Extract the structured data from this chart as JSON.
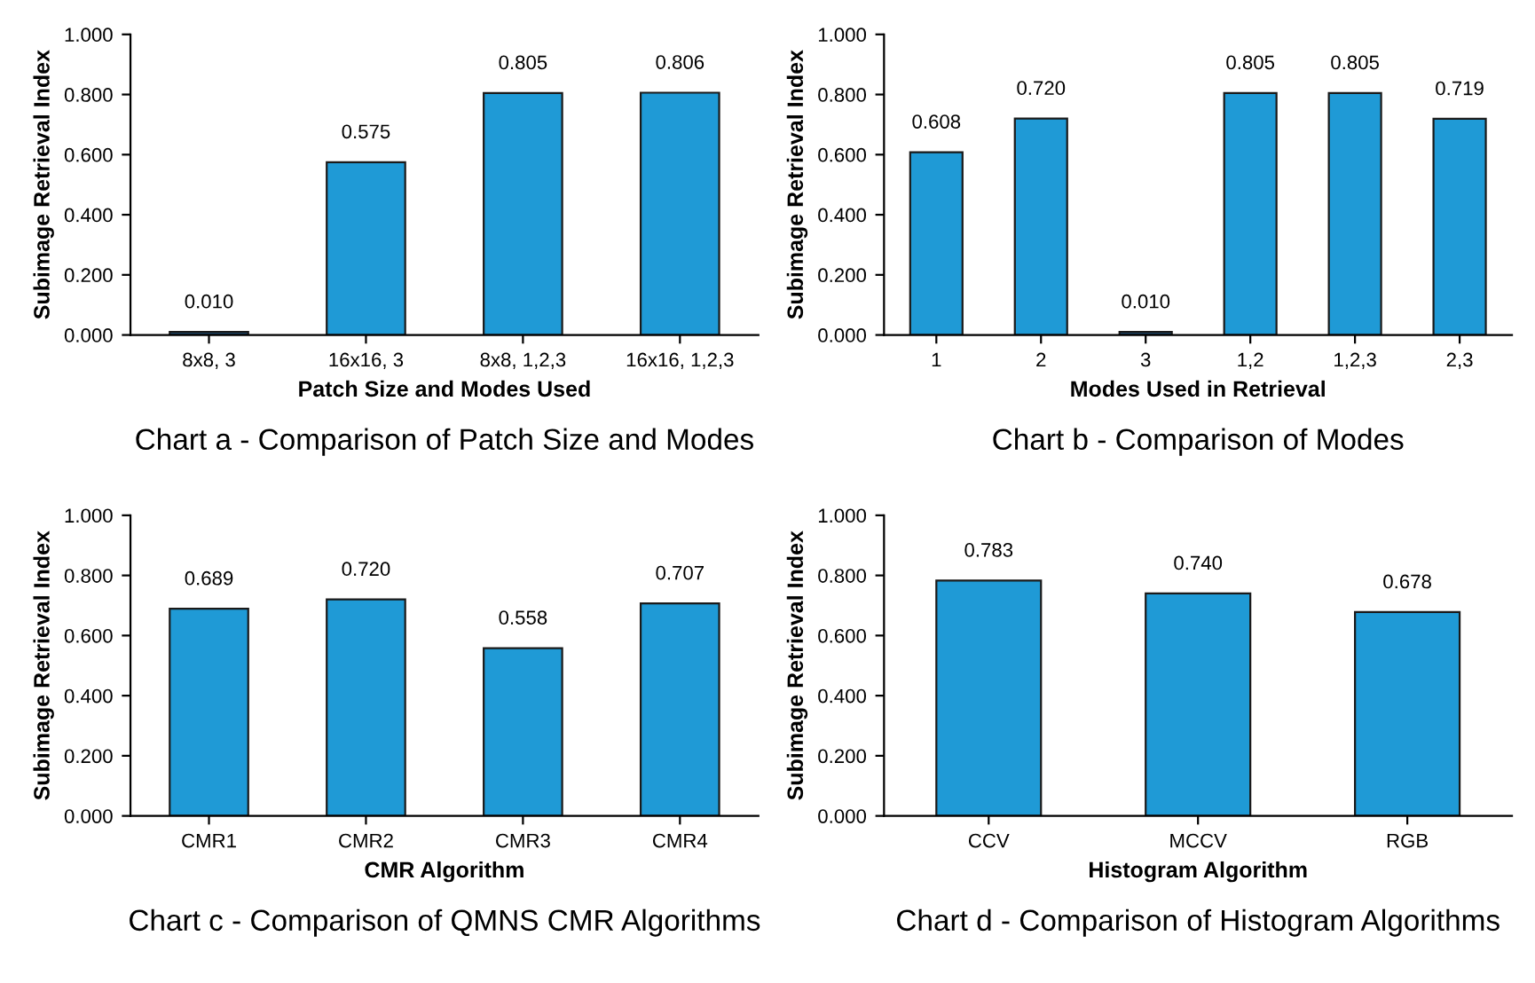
{
  "chart_data": [
    {
      "type": "bar",
      "title": "Chart a - Comparison of Patch Size and Modes",
      "xlabel": "Patch Size and Modes Used",
      "ylabel": "Subimage Retrieval Index",
      "categories": [
        "8x8, 3",
        "16x16, 3",
        "8x8, 1,2,3",
        "16x16, 1,2,3"
      ],
      "values": [
        0.01,
        0.575,
        0.805,
        0.806
      ],
      "value_labels": [
        "0.010",
        "0.575",
        "0.805",
        "0.806"
      ],
      "colors": [
        "#1d4f7a",
        "#1f9ad6",
        "#1f9ad6",
        "#1f9ad6"
      ],
      "ylim": [
        0,
        1
      ],
      "yticks": [
        {
          "value": 0,
          "label": "0.000"
        },
        {
          "value": 0.2,
          "label": "0.200"
        },
        {
          "value": 0.4,
          "label": "0.400"
        },
        {
          "value": 0.6,
          "label": "0.600"
        },
        {
          "value": 0.8,
          "label": "0.800"
        },
        {
          "value": 1,
          "label": "1.000"
        }
      ]
    },
    {
      "type": "bar",
      "title": "Chart b - Comparison of Modes",
      "xlabel": "Modes Used in Retrieval",
      "ylabel": "Subimage Retrieval Index",
      "categories": [
        "1",
        "2",
        "3",
        "1,2",
        "1,2,3",
        "2,3"
      ],
      "values": [
        0.608,
        0.72,
        0.01,
        0.805,
        0.805,
        0.719
      ],
      "value_labels": [
        "0.608",
        "0.720",
        "0.010",
        "0.805",
        "0.805",
        "0.719"
      ],
      "colors": [
        "#1f9ad6",
        "#1f9ad6",
        "#1d4f7a",
        "#1f9ad6",
        "#1f9ad6",
        "#1f9ad6"
      ],
      "ylim": [
        0,
        1
      ],
      "yticks": [
        {
          "value": 0,
          "label": "0.000"
        },
        {
          "value": 0.2,
          "label": "0.200"
        },
        {
          "value": 0.4,
          "label": "0.400"
        },
        {
          "value": 0.6,
          "label": "0.600"
        },
        {
          "value": 0.8,
          "label": "0.800"
        },
        {
          "value": 1,
          "label": "1.000"
        }
      ]
    },
    {
      "type": "bar",
      "title": "Chart c - Comparison of QMNS CMR Algorithms",
      "xlabel": "CMR Algorithm",
      "ylabel": "Subimage Retrieval Index",
      "categories": [
        "CMR1",
        "CMR2",
        "CMR3",
        "CMR4"
      ],
      "values": [
        0.689,
        0.72,
        0.558,
        0.707
      ],
      "value_labels": [
        "0.689",
        "0.720",
        "0.558",
        "0.707"
      ],
      "colors": [
        "#1f9ad6",
        "#1f9ad6",
        "#1f9ad6",
        "#1f9ad6"
      ],
      "ylim": [
        0,
        1
      ],
      "yticks": [
        {
          "value": 0,
          "label": "0.000"
        },
        {
          "value": 0.2,
          "label": "0.200"
        },
        {
          "value": 0.4,
          "label": "0.400"
        },
        {
          "value": 0.6,
          "label": "0.600"
        },
        {
          "value": 0.8,
          "label": "0.800"
        },
        {
          "value": 1,
          "label": "1.000"
        }
      ]
    },
    {
      "type": "bar",
      "title": "Chart d - Comparison of Histogram Algorithms",
      "xlabel": "Histogram Algorithm",
      "ylabel": "Subimage Retrieval Index",
      "categories": [
        "CCV",
        "MCCV",
        "RGB"
      ],
      "values": [
        0.783,
        0.74,
        0.678
      ],
      "value_labels": [
        "0.783",
        "0.740",
        "0.678"
      ],
      "colors": [
        "#1f9ad6",
        "#1f9ad6",
        "#1f9ad6"
      ],
      "ylim": [
        0,
        1
      ],
      "yticks": [
        {
          "value": 0,
          "label": "0.000"
        },
        {
          "value": 0.2,
          "label": "0.200"
        },
        {
          "value": 0.4,
          "label": "0.400"
        },
        {
          "value": 0.6,
          "label": "0.600"
        },
        {
          "value": 0.8,
          "label": "0.800"
        },
        {
          "value": 1,
          "label": "1.000"
        }
      ]
    }
  ]
}
